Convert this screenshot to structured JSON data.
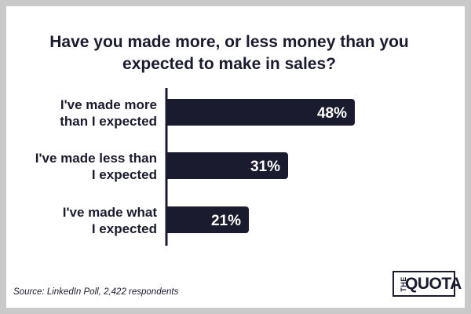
{
  "chart_data": {
    "type": "bar",
    "orientation": "horizontal",
    "title": "Have you made more, or less money than you expected to make in sales?",
    "categories": [
      "I've made more than I expected",
      "I've made less than I expected",
      "I've made what I expected"
    ],
    "values": [
      48,
      31,
      21
    ],
    "value_labels": [
      "48%",
      "31%",
      "21%"
    ],
    "unit": "%",
    "xlim": [
      0,
      48
    ],
    "grid": false,
    "bar_color": "#1b1b2f",
    "label_color": "#ffffff"
  },
  "source": "Source: LinkedIn Poll, 2,422 respondents",
  "logo": {
    "small": "THE",
    "large": "QUOTA"
  }
}
